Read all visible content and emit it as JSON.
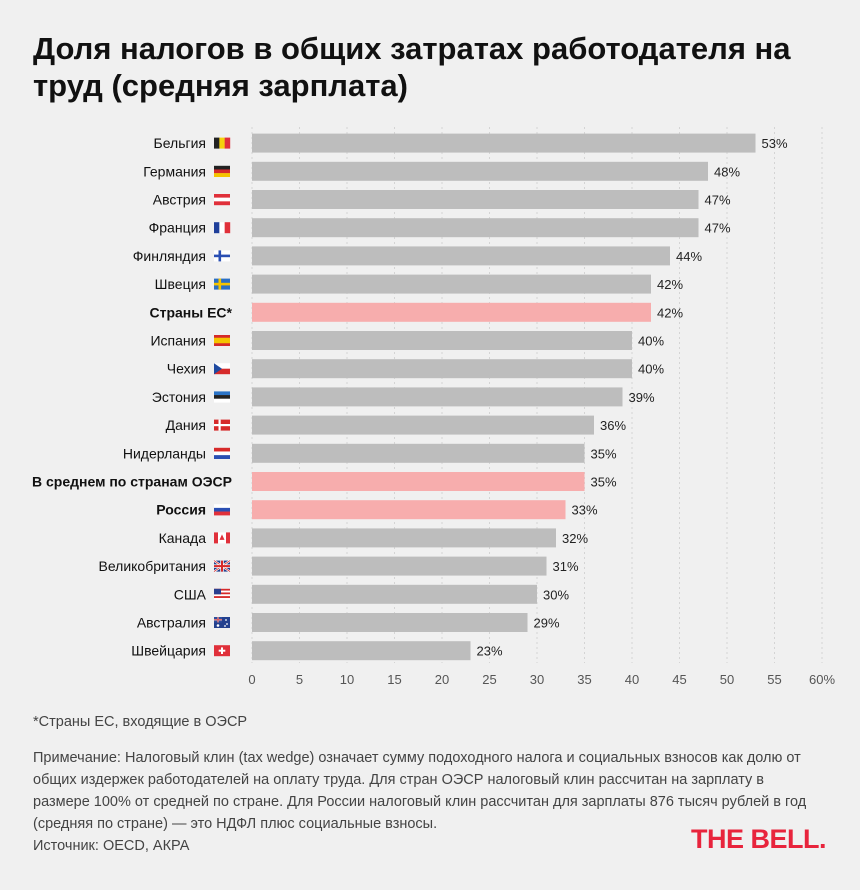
{
  "chart_data": {
    "type": "bar",
    "orientation": "horizontal",
    "title": "Доля налогов в общих затратах работодателя на труд (средняя зарплата)",
    "categories": [
      "Бельгия",
      "Германия",
      "Австрия",
      "Франция",
      "Финляндия",
      "Швеция",
      "Страны ЕС*",
      "Испания",
      "Чехия",
      "Эстония",
      "Дания",
      "Нидерланды",
      "В среднем по странам ОЭСР",
      "Россия",
      "Канада",
      "Великобритания",
      "США",
      "Австралия",
      "Швейцария"
    ],
    "values": [
      53,
      48,
      47,
      47,
      44,
      42,
      42,
      40,
      40,
      39,
      36,
      35,
      35,
      33,
      32,
      31,
      30,
      29,
      23
    ],
    "value_labels": [
      "53%",
      "48%",
      "47%",
      "47%",
      "44%",
      "42%",
      "42%",
      "40%",
      "40%",
      "39%",
      "36%",
      "35%",
      "35%",
      "33%",
      "32%",
      "31%",
      "30%",
      "29%",
      "23%"
    ],
    "highlighted": [
      false,
      false,
      false,
      false,
      false,
      false,
      true,
      false,
      false,
      false,
      false,
      false,
      true,
      true,
      false,
      false,
      false,
      false,
      false
    ],
    "flags": [
      "be",
      "de",
      "at",
      "fr",
      "fi",
      "se",
      "",
      "es",
      "cz",
      "ee",
      "dk",
      "nl",
      "",
      "ru",
      "ca",
      "gb",
      "us",
      "au",
      "ch"
    ],
    "x_ticks": [
      "0",
      "5",
      "10",
      "15",
      "20",
      "25",
      "30",
      "35",
      "40",
      "45",
      "50",
      "55",
      "60%"
    ],
    "xlim": [
      0,
      60
    ],
    "grid": true,
    "colors": {
      "bar": "#bdbdbd",
      "highlight": "#f7adad",
      "grid": "#d4d4d4"
    }
  },
  "footnote": "*Страны ЕС, входящие в ОЭСР",
  "note": "Примечание: Налоговый клин (tax wedge) означает сумму подоходного налога и социальных взносов как долю от общих издержек работодателей на оплату труда. Для стран ОЭСР налоговый клин рассчитан на зарплату в размере 100% от средней по стране. Для России налоговый клин рассчитан для зарплаты 876 тысяч рублей в год (средняя по стране) — это НДФЛ плюс социальные взносы.",
  "source": "Источник: OECD, АКРА",
  "logo": "THE BELL."
}
